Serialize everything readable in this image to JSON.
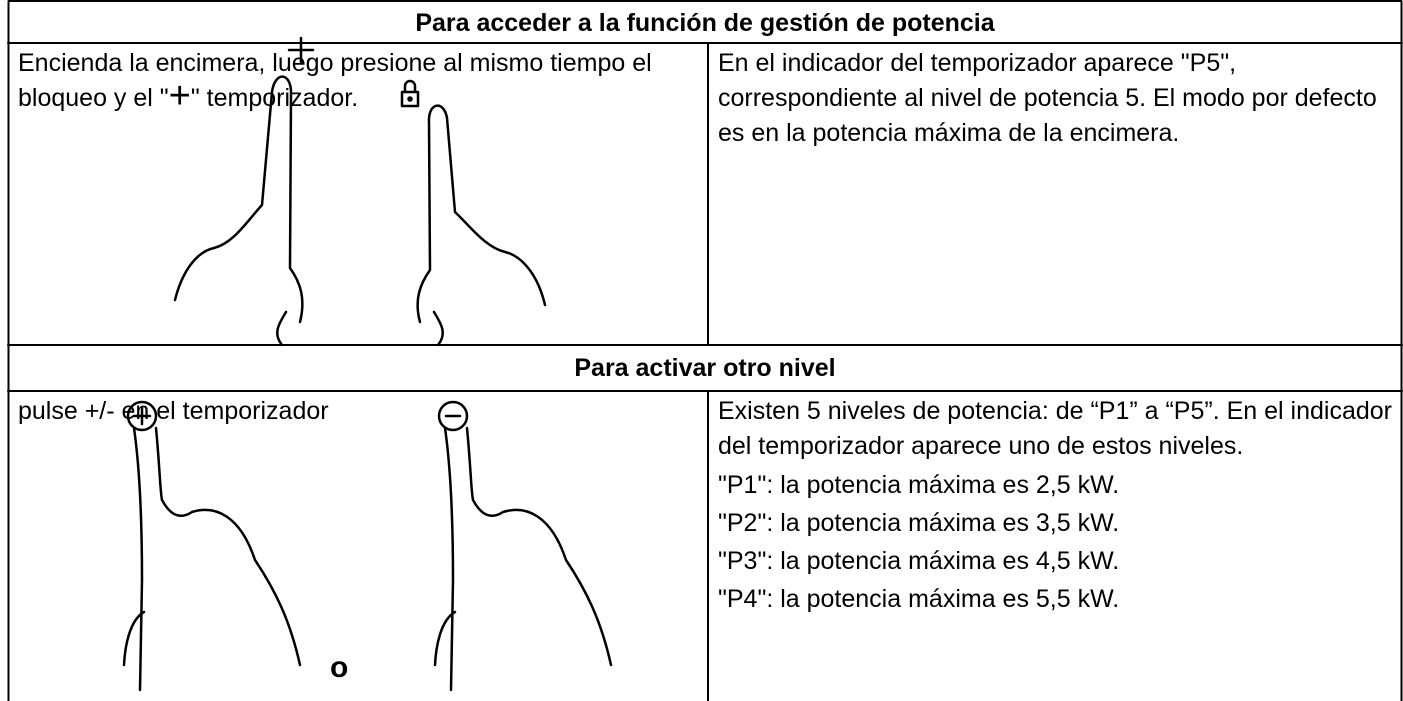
{
  "sections": [
    {
      "title": "Para acceder a la función de gestión de potencia",
      "left": {
        "text_parts": [
          "Encienda la encimera, luego presione al mismo tiempo el bloqueo y el \"",
          "+",
          "\" temporizador."
        ]
      },
      "right": {
        "paragraph": "En el indicador del temporizador aparece \"P5\", correspondiente al nivel de potencia 5. El modo por defecto es en la potencia máxima de la encimera."
      }
    },
    {
      "title": "Para activar otro nivel",
      "left": {
        "text": "pulse +/- en el temporizador",
        "or": "o"
      },
      "right": {
        "paragraph": "Existen 5 niveles de potencia: de “P1” a “P5”. En el indicador del temporizador aparece uno de estos niveles.",
        "items": [
          "\"P1\": la potencia máxima es 2,5 kW.",
          "\"P2\": la potencia máxima es 3,5 kW.",
          "\"P3\": la potencia máxima es 4,5 kW.",
          "\"P4\": la potencia máxima es 5,5 kW."
        ]
      }
    }
  ]
}
